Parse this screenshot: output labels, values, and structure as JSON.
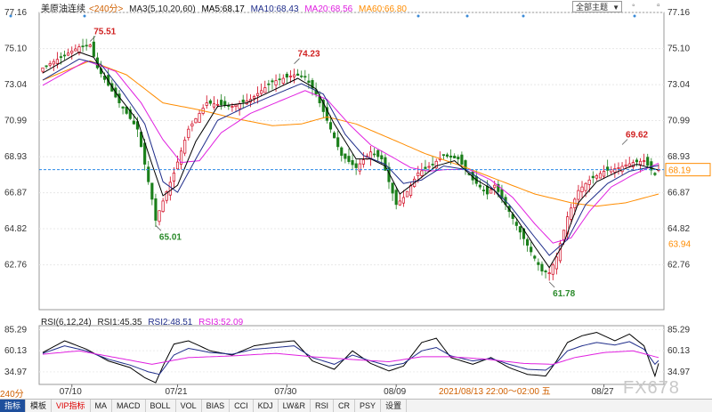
{
  "legend": {
    "symbol": "美原油连续",
    "period": "<240分>",
    "ma3": "MA3(5,10,20,60)",
    "ma5": "MA5:68.17",
    "ma10": "MA10:68.43",
    "ma20": "MA20:68.56",
    "ma60": "MA60:66.80"
  },
  "rsi_legend": {
    "rsi": "RSI(6,12,24)",
    "rsi1": "RSI1:45.35",
    "rsi2": "RSI2:48.51",
    "rsi3": "RSI3:52.09"
  },
  "mode_select": "全部主题",
  "period_label": "240分",
  "cursor_readout": "2021/08/13 22:00～02:00 五",
  "watermark": "FX678",
  "tabs": [
    "指标",
    "模板",
    "VIP指标",
    "MA",
    "MACD",
    "BOLL",
    "VOL",
    "BIAS",
    "CCI",
    "KDJ",
    "LW&R",
    "RSI",
    "CR",
    "PSY",
    "设置"
  ],
  "colors": {
    "up": "#d0021b",
    "down": "#1a7f1a",
    "ma5": "#000000",
    "ma10": "#1f2d8a",
    "ma20": "#e020e0",
    "ma60": "#ff8c00",
    "price_line": "#2b8ae8",
    "price_box": "#ff8c00"
  },
  "chart_data": [
    {
      "type": "candlestick",
      "ylim": [
        60.2,
        77.16
      ],
      "y_ticks": [
        "77.16",
        "75.10",
        "73.04",
        "70.99",
        "68.93",
        "66.87",
        "64.82",
        "62.76"
      ],
      "x_ticks": [
        "07/10",
        "07/21",
        "07/30",
        "08/09",
        "08/27"
      ],
      "x_tick_pos": [
        8,
        37,
        67,
        97,
        154
      ],
      "n_bars": 170,
      "anchors": [
        [
          0,
          74.0
        ],
        [
          10,
          75.2
        ],
        [
          13,
          75.3
        ],
        [
          15,
          74.0
        ],
        [
          21,
          72.0
        ],
        [
          26,
          70.5
        ],
        [
          30,
          66.5
        ],
        [
          31,
          65.3
        ],
        [
          33,
          66.4
        ],
        [
          36,
          68.0
        ],
        [
          40,
          70.5
        ],
        [
          45,
          72.0
        ],
        [
          52,
          71.8
        ],
        [
          57,
          72.2
        ],
        [
          63,
          73.2
        ],
        [
          69,
          73.6
        ],
        [
          72,
          73.5
        ],
        [
          75,
          72.5
        ],
        [
          79,
          70.5
        ],
        [
          82,
          69.0
        ],
        [
          86,
          68.3
        ],
        [
          90,
          69.2
        ],
        [
          93,
          68.8
        ],
        [
          95,
          67.5
        ],
        [
          97,
          66.2
        ],
        [
          99,
          66.6
        ],
        [
          103,
          68.0
        ],
        [
          107,
          68.5
        ],
        [
          110,
          69.0
        ],
        [
          114,
          68.8
        ],
        [
          118,
          67.6
        ],
        [
          122,
          66.8
        ],
        [
          124,
          67.3
        ],
        [
          127,
          66.2
        ],
        [
          130,
          65.0
        ],
        [
          134,
          63.5
        ],
        [
          137,
          62.4
        ],
        [
          139,
          62.3
        ],
        [
          141,
          63.2
        ],
        [
          144,
          65.5
        ],
        [
          147,
          67.0
        ],
        [
          150,
          67.6
        ],
        [
          154,
          68.1
        ],
        [
          158,
          68.3
        ],
        [
          162,
          68.6
        ],
        [
          165,
          68.7
        ],
        [
          168,
          67.9
        ],
        [
          169,
          68.19
        ]
      ],
      "ma5": [
        [
          0,
          73.7
        ],
        [
          10,
          74.9
        ],
        [
          14,
          74.6
        ],
        [
          20,
          72.6
        ],
        [
          26,
          71.0
        ],
        [
          30,
          68.5
        ],
        [
          33,
          66.7
        ],
        [
          37,
          67.3
        ],
        [
          42,
          69.8
        ],
        [
          48,
          71.8
        ],
        [
          56,
          72.0
        ],
        [
          64,
          72.8
        ],
        [
          70,
          73.4
        ],
        [
          75,
          72.8
        ],
        [
          80,
          70.8
        ],
        [
          86,
          68.8
        ],
        [
          90,
          68.8
        ],
        [
          94,
          68.4
        ],
        [
          98,
          66.8
        ],
        [
          103,
          67.6
        ],
        [
          108,
          68.4
        ],
        [
          113,
          68.7
        ],
        [
          119,
          67.6
        ],
        [
          124,
          67.0
        ],
        [
          130,
          65.4
        ],
        [
          135,
          63.8
        ],
        [
          139,
          62.6
        ],
        [
          143,
          64.0
        ],
        [
          147,
          66.3
        ],
        [
          152,
          67.5
        ],
        [
          158,
          68.1
        ],
        [
          163,
          68.5
        ],
        [
          169,
          68.17
        ]
      ],
      "ma10": [
        [
          0,
          73.3
        ],
        [
          10,
          74.5
        ],
        [
          16,
          74.2
        ],
        [
          22,
          72.6
        ],
        [
          28,
          70.8
        ],
        [
          33,
          67.5
        ],
        [
          37,
          66.9
        ],
        [
          42,
          68.8
        ],
        [
          48,
          71.0
        ],
        [
          56,
          71.8
        ],
        [
          64,
          72.5
        ],
        [
          71,
          73.1
        ],
        [
          77,
          72.5
        ],
        [
          83,
          70.2
        ],
        [
          88,
          69.0
        ],
        [
          94,
          68.5
        ],
        [
          99,
          67.4
        ],
        [
          104,
          67.6
        ],
        [
          110,
          68.4
        ],
        [
          116,
          68.2
        ],
        [
          122,
          67.4
        ],
        [
          128,
          66.2
        ],
        [
          134,
          64.6
        ],
        [
          139,
          63.3
        ],
        [
          144,
          64.2
        ],
        [
          149,
          66.2
        ],
        [
          155,
          67.4
        ],
        [
          161,
          68.1
        ],
        [
          169,
          68.43
        ]
      ],
      "ma20": [
        [
          0,
          73.0
        ],
        [
          12,
          74.4
        ],
        [
          20,
          73.8
        ],
        [
          27,
          72.0
        ],
        [
          33,
          69.9
        ],
        [
          38,
          68.6
        ],
        [
          43,
          68.7
        ],
        [
          49,
          70.3
        ],
        [
          57,
          71.4
        ],
        [
          65,
          72.1
        ],
        [
          72,
          72.7
        ],
        [
          78,
          72.2
        ],
        [
          84,
          70.8
        ],
        [
          90,
          69.6
        ],
        [
          96,
          68.9
        ],
        [
          101,
          68.3
        ],
        [
          106,
          68.1
        ],
        [
          111,
          68.2
        ],
        [
          117,
          68.2
        ],
        [
          123,
          67.6
        ],
        [
          129,
          66.6
        ],
        [
          135,
          65.1
        ],
        [
          140,
          64.0
        ],
        [
          145,
          64.3
        ],
        [
          150,
          65.8
        ],
        [
          156,
          67.2
        ],
        [
          162,
          67.9
        ],
        [
          169,
          68.56
        ]
      ],
      "ma60": [
        [
          0,
          73.3
        ],
        [
          13,
          74.4
        ],
        [
          23,
          73.6
        ],
        [
          33,
          72.0
        ],
        [
          43,
          71.6
        ],
        [
          53,
          71.1
        ],
        [
          63,
          70.7
        ],
        [
          71,
          70.8
        ],
        [
          78,
          71.2
        ],
        [
          86,
          70.8
        ],
        [
          95,
          70.0
        ],
        [
          105,
          69.1
        ],
        [
          115,
          68.4
        ],
        [
          125,
          67.6
        ],
        [
          135,
          66.8
        ],
        [
          145,
          66.3
        ],
        [
          152,
          66.1
        ],
        [
          160,
          66.3
        ],
        [
          169,
          66.8
        ]
      ],
      "annotations": [
        {
          "label": "75.51",
          "bar": 13,
          "value": 75.51,
          "pos": "above"
        },
        {
          "label": "65.01",
          "bar": 31,
          "value": 65.01,
          "pos": "below"
        },
        {
          "label": "74.23",
          "bar": 69,
          "value": 74.23,
          "pos": "above"
        },
        {
          "label": "61.78",
          "bar": 139,
          "value": 61.78,
          "pos": "below"
        },
        {
          "label": "69.62",
          "bar": 159,
          "value": 69.62,
          "pos": "above"
        }
      ],
      "last_price": "68.19",
      "last_price_value": 68.19,
      "low_box": "63.94"
    },
    {
      "type": "line",
      "ylim": [
        20,
        90
      ],
      "y_ticks": [
        "85.29",
        "60.13",
        "34.97"
      ],
      "series": [
        {
          "name": "RSI1",
          "values": [
            [
              0,
              58
            ],
            [
              6,
              72
            ],
            [
              12,
              62
            ],
            [
              18,
              48
            ],
            [
              24,
              40
            ],
            [
              28,
              28
            ],
            [
              31,
              22
            ],
            [
              33,
              42
            ],
            [
              36,
              68
            ],
            [
              40,
              72
            ],
            [
              46,
              60
            ],
            [
              52,
              55
            ],
            [
              58,
              66
            ],
            [
              64,
              70
            ],
            [
              69,
              72
            ],
            [
              74,
              48
            ],
            [
              80,
              38
            ],
            [
              85,
              60
            ],
            [
              90,
              45
            ],
            [
              95,
              36
            ],
            [
              99,
              42
            ],
            [
              104,
              70
            ],
            [
              108,
              75
            ],
            [
              112,
              52
            ],
            [
              118,
              44
            ],
            [
              123,
              52
            ],
            [
              128,
              40
            ],
            [
              133,
              32
            ],
            [
              138,
              30
            ],
            [
              141,
              48
            ],
            [
              144,
              70
            ],
            [
              148,
              78
            ],
            [
              152,
              82
            ],
            [
              157,
              72
            ],
            [
              161,
              80
            ],
            [
              165,
              66
            ],
            [
              168,
              30
            ],
            [
              169,
              45
            ]
          ]
        },
        {
          "name": "RSI2",
          "values": [
            [
              0,
              57
            ],
            [
              6,
              66
            ],
            [
              12,
              60
            ],
            [
              18,
              50
            ],
            [
              24,
              43
            ],
            [
              29,
              35
            ],
            [
              32,
              32
            ],
            [
              36,
              55
            ],
            [
              40,
              63
            ],
            [
              46,
              58
            ],
            [
              52,
              56
            ],
            [
              58,
              62
            ],
            [
              64,
              64
            ],
            [
              69,
              66
            ],
            [
              74,
              52
            ],
            [
              80,
              44
            ],
            [
              85,
              55
            ],
            [
              90,
              48
            ],
            [
              95,
              42
            ],
            [
              99,
              45
            ],
            [
              104,
              60
            ],
            [
              108,
              64
            ],
            [
              112,
              54
            ],
            [
              118,
              48
            ],
            [
              123,
              51
            ],
            [
              128,
              44
            ],
            [
              133,
              38
            ],
            [
              138,
              37
            ],
            [
              141,
              46
            ],
            [
              144,
              60
            ],
            [
              148,
              66
            ],
            [
              152,
              70
            ],
            [
              157,
              67
            ],
            [
              161,
              71
            ],
            [
              165,
              62
            ],
            [
              168,
              44
            ],
            [
              169,
              48.5
            ]
          ]
        },
        {
          "name": "RSI3",
          "values": [
            [
              0,
              56
            ],
            [
              10,
              60
            ],
            [
              20,
              52
            ],
            [
              30,
              44
            ],
            [
              40,
              52
            ],
            [
              52,
              54
            ],
            [
              64,
              57
            ],
            [
              74,
              53
            ],
            [
              84,
              50
            ],
            [
              95,
              47
            ],
            [
              104,
              53
            ],
            [
              112,
              53
            ],
            [
              122,
              50
            ],
            [
              132,
              45
            ],
            [
              140,
              44
            ],
            [
              146,
              52
            ],
            [
              154,
              58
            ],
            [
              162,
              60
            ],
            [
              169,
              52
            ]
          ]
        }
      ]
    }
  ]
}
